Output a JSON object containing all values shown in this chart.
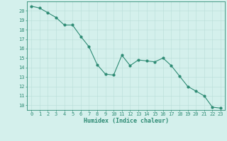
{
  "x": [
    0,
    1,
    2,
    3,
    4,
    5,
    6,
    7,
    8,
    9,
    10,
    11,
    12,
    13,
    14,
    15,
    16,
    17,
    18,
    19,
    20,
    21,
    22,
    23
  ],
  "y": [
    20.5,
    20.3,
    19.8,
    19.3,
    18.5,
    18.5,
    17.3,
    16.2,
    14.3,
    13.3,
    13.2,
    15.3,
    14.2,
    14.8,
    14.7,
    14.6,
    15.0,
    14.2,
    13.1,
    12.0,
    11.5,
    11.0,
    9.8,
    9.7
  ],
  "xlabel": "Humidex (Indice chaleur)",
  "xlim": [
    -0.5,
    23.5
  ],
  "ylim": [
    9.5,
    21.0
  ],
  "yticks": [
    10,
    11,
    12,
    13,
    14,
    15,
    16,
    17,
    18,
    19,
    20
  ],
  "xticks": [
    0,
    1,
    2,
    3,
    4,
    5,
    6,
    7,
    8,
    9,
    10,
    11,
    12,
    13,
    14,
    15,
    16,
    17,
    18,
    19,
    20,
    21,
    22,
    23
  ],
  "line_color": "#2e8b74",
  "marker_color": "#2e8b74",
  "bg_color": "#d4f0ec",
  "grid_color": "#b8ddd8",
  "axis_color": "#2e8b74",
  "label_color": "#2e8b74",
  "tick_fontsize": 5.0,
  "xlabel_fontsize": 6.0,
  "marker_size": 2.0,
  "line_width": 0.8
}
